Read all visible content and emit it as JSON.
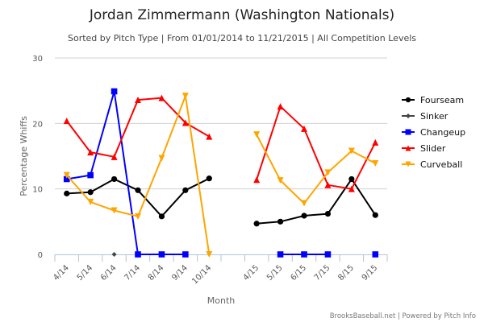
{
  "chart_data": {
    "type": "line",
    "title": "Jordan Zimmermann (Washington Nationals)",
    "subtitle": "Sorted by Pitch Type | From 01/01/2014 to 11/21/2015 | All Competition Levels",
    "xlabel": "Month",
    "ylabel": "Percentage Whiffs",
    "ylim": [
      0,
      30
    ],
    "yticks": [
      "0",
      "10",
      "20",
      "30"
    ],
    "ytick_values": [
      0,
      10,
      20,
      30
    ],
    "grid": true,
    "legend_position": "right",
    "categories": [
      "4/14",
      "5/14",
      "6/14",
      "7/14",
      "8/14",
      "9/14",
      "10/14",
      "",
      "4/15",
      "5/15",
      "6/15",
      "7/15",
      "8/15",
      "9/15"
    ],
    "series": [
      {
        "name": "Fourseam",
        "color": "#000000",
        "marker": "circle",
        "values": [
          9.3,
          9.5,
          11.5,
          9.8,
          5.8,
          9.8,
          11.6,
          null,
          4.7,
          5.0,
          5.9,
          6.2,
          11.5,
          6.0
        ]
      },
      {
        "name": "Sinker",
        "color": "#444444",
        "marker": "diamond",
        "values": [
          null,
          null,
          0,
          null,
          null,
          null,
          null,
          null,
          null,
          null,
          null,
          null,
          null,
          null
        ]
      },
      {
        "name": "Changeup",
        "color": "#0000ff",
        "marker": "square",
        "values": [
          11.5,
          12.1,
          24.9,
          0,
          0,
          0,
          null,
          null,
          null,
          0,
          0,
          0,
          null,
          0
        ]
      },
      {
        "name": "Slider",
        "color": "#ff0000",
        "marker": "triangle",
        "values": [
          20.4,
          15.6,
          14.9,
          23.6,
          23.9,
          20.1,
          18.0,
          null,
          11.4,
          22.6,
          19.2,
          10.6,
          10.0,
          17.1
        ]
      },
      {
        "name": "Curveball",
        "color": "#ffa500",
        "marker": "triangle-down",
        "values": [
          12.1,
          8.0,
          6.7,
          5.8,
          14.7,
          24.2,
          0,
          null,
          18.3,
          11.3,
          7.8,
          12.5,
          15.8,
          13.9
        ]
      }
    ],
    "credits": "BrooksBaseball.net | Powered by Pitch Info"
  }
}
